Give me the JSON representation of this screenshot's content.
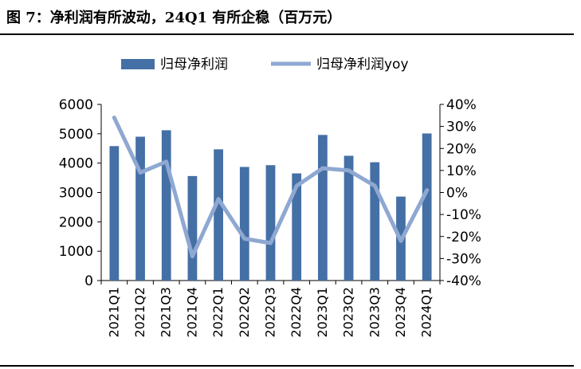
{
  "figure": {
    "title": "图 7：净利润有所波动，24Q1 有所企稳（百万元）"
  },
  "colors": {
    "bar": "#4470A5",
    "line": "#8FA8D2",
    "axis": "#000000"
  },
  "chart_data": {
    "type": "bar",
    "categories": [
      "2021Q1",
      "2021Q2",
      "2021Q3",
      "2021Q4",
      "2022Q1",
      "2022Q2",
      "2022Q3",
      "2022Q4",
      "2023Q1",
      "2023Q2",
      "2023Q3",
      "2023Q4",
      "2024Q1"
    ],
    "series": [
      {
        "name": "归母净利润",
        "type": "bar",
        "axis": "left",
        "values": [
          4580,
          4900,
          5120,
          3560,
          4470,
          3870,
          3930,
          3650,
          4960,
          4250,
          4030,
          2860,
          5010
        ]
      },
      {
        "name": "归母净利润yoy",
        "type": "line",
        "axis": "right",
        "values": [
          34,
          9,
          14,
          -29,
          -3,
          -21,
          -23,
          3,
          11,
          10,
          3,
          -22,
          1
        ]
      }
    ],
    "y_left": {
      "min": 0,
      "max": 6000,
      "ticks": [
        "0",
        "1000",
        "2000",
        "3000",
        "4000",
        "5000",
        "6000"
      ]
    },
    "y_right": {
      "min": -40,
      "max": 40,
      "ticks": [
        "-40%",
        "-30%",
        "-20%",
        "-10%",
        "0%",
        "10%",
        "20%",
        "30%",
        "40%"
      ]
    },
    "legend_position": "top"
  }
}
